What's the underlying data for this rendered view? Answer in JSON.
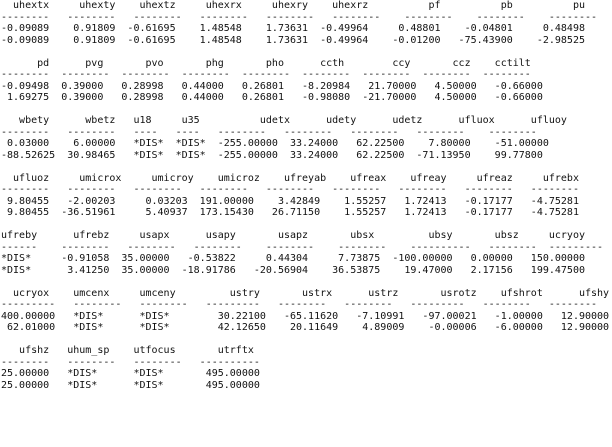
{
  "lines": [
    "  uhextx     uhexty    uhextz     uhexrx     uhexry    uhexrz          pf          pb          pu",
    "--------   --------   --------   --------   --------   --------    --------    --------    --------",
    "-0.09089    0.91809  -0.61695    1.48548    1.73631  -0.49964     0.48801    -0.04801     0.48498",
    "-0.09089    0.91809  -0.61695    1.48548    1.73631  -0.49964    -0.01200   -75.43900    -2.98525",
    "",
    "      pd      pvg       pvo       phg       pho      ccth        ccy       ccz    cctilt",
    "--------  --------  --------  --------  --------  --------  --------  --------  --------",
    "-0.09498  0.39000   0.28998   0.44000   0.26801   -8.20984   21.70000   4.50000   -0.66000",
    " 1.69275  0.39000   0.28998   0.44000   0.26801   -0.98080  -21.70000   4.50000   -0.66000",
    "",
    "   wbety      wbetz   u18     u35          udetx      udety      udetz      ufluox      ufluoy",
    "--------   --------   ----   ----   --------   --------   --------   --------    --------",
    " 0.03000    6.00000   *DIS*  *DIS*  -255.00000  33.24000   62.22500    7.80000    -51.00000",
    "-88.52625  30.98465   *DIS*  *DIS*  -255.00000  33.24000   62.22500  -71.13950    99.77800",
    "",
    "  ufluoz     umicrox     umicroy    umicroz    ufreyab    ufreax    ufreay     ufreaz     ufrebx",
    "--------   --------   --------   --------   --------   --------   --------   --------   --------",
    " 9.80455   -2.00203     0.03203  191.00000    3.42849    1.55257   1.72413   -0.17177   -4.75281",
    " 9.80455  -36.51961     5.40937  173.15430   26.71150    1.55257   1.72413   -0.17177   -4.75281",
    "",
    "ufreby      ufrebz     usapx      usapy       usapz       ubsx         ubsy       ubsz     ucryoy",
    "------    --------   --------   --------    --------    --------    ----------   --------  ---------",
    "*DIS*     -0.91058  35.00000   -0.53822     0.44304     7.73875  -100.00000   0.00000   150.00000",
    "*DIS*      3.41250  35.00000  -18.91786   -20.56904    36.53875    19.47000   2.17156   199.47500",
    "",
    "  ucryox    umcenx     umceny         ustry       ustrx      ustrz       usrotz    ufshrot      ufshy",
    "---------   --------   --------   ---------   --------   --------   ---------   --------   --------",
    "400.00000   *DIS*      *DIS*        30.22100   -65.11620   -7.10991   -97.00021   -1.00000   12.90000",
    " 62.01000   *DIS*      *DIS*        42.12650    20.11649    4.89009    -0.00006   -6.00000   12.90000",
    "",
    "   ufshz   uhum_sp    utfocus       utrftx",
    "--------   --------   --------   ----------",
    "25.00000   *DIS*      *DIS*       495.00000",
    "25.00000   *DIS*      *DIS*       495.00000"
  ]
}
